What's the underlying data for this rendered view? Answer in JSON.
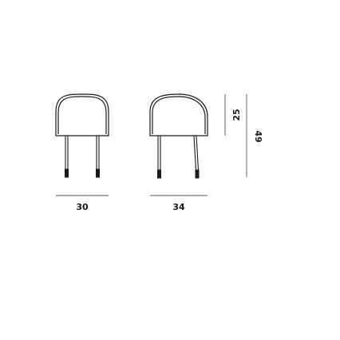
{
  "dimensions": {
    "front_width": "30",
    "side_depth": "34",
    "seat_height": "25",
    "total_height": "49"
  },
  "colors": {
    "line": "#1a1a1a",
    "dimension_line": "#555555",
    "background": "#ffffff"
  }
}
